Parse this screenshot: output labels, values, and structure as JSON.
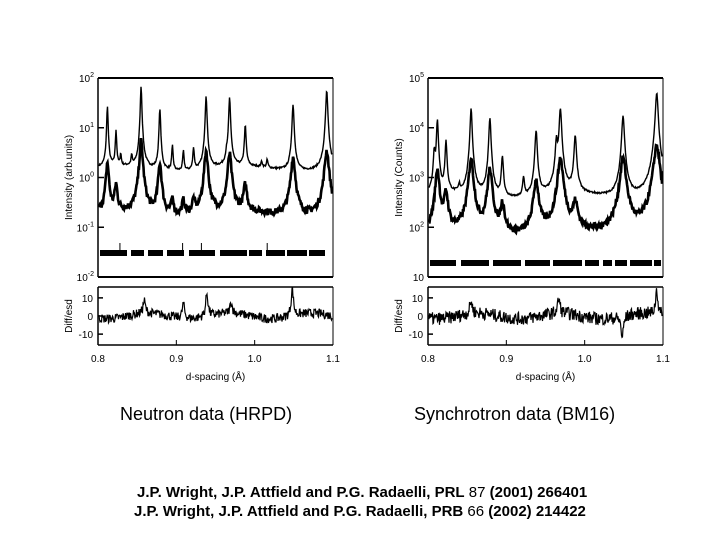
{
  "captions": {
    "left": "Neutron data (HRPD)",
    "right": "Synchrotron data (BM16)"
  },
  "references": [
    {
      "authors": "J.P. Wright, J.P. Attfield and P.G. Radaelli, ",
      "journal": "PRL",
      "volume": " 87 ",
      "rest": "(2001) 266401"
    },
    {
      "authors": "J.P. Wright, J.P. Attfield and P.G. Radaelli, ",
      "journal": "PRB",
      "volume": " 66 ",
      "rest": "(2002) 214422"
    }
  ],
  "chart_data": [
    {
      "type": "line",
      "title": "Neutron data (HRPD)",
      "xlabel": "d-spacing (Å)",
      "ylabel": "Intensity (arb.units)",
      "yscale": "log",
      "xlim": [
        0.8,
        1.1
      ],
      "ylim": [
        0.01,
        100
      ],
      "x_ticks": [
        "0.8",
        "0.9",
        "1.0",
        "1.1"
      ],
      "y_ticks": [
        "10^-2",
        "10^-1",
        "10^0",
        "10^1",
        "10^2"
      ],
      "baselines": {
        "upper": 1.5,
        "lower": 0.18
      },
      "series": [
        {
          "name": "upper pattern (observed/calc)",
          "peaks": [
            {
              "x": 0.812,
              "y": 28
            },
            {
              "x": 0.823,
              "y": 9
            },
            {
              "x": 0.829,
              "y": 2.8
            },
            {
              "x": 0.843,
              "y": 2.6
            },
            {
              "x": 0.855,
              "y": 70
            },
            {
              "x": 0.879,
              "y": 25
            },
            {
              "x": 0.895,
              "y": 4.5
            },
            {
              "x": 0.909,
              "y": 3.6
            },
            {
              "x": 0.922,
              "y": 4.2
            },
            {
              "x": 0.938,
              "y": 45
            },
            {
              "x": 0.964,
              "y": 2.3
            },
            {
              "x": 0.968,
              "y": 40
            },
            {
              "x": 0.988,
              "y": 11
            },
            {
              "x": 1.009,
              "y": 2.0
            },
            {
              "x": 1.016,
              "y": 2.2
            },
            {
              "x": 1.049,
              "y": 30
            },
            {
              "x": 1.092,
              "y": 55
            }
          ]
        },
        {
          "name": "lower pattern (observed/calc)",
          "peaks": [
            {
              "x": 0.812,
              "y": 2.0
            },
            {
              "x": 0.823,
              "y": 0.7
            },
            {
              "x": 0.855,
              "y": 5.5
            },
            {
              "x": 0.879,
              "y": 2.0
            },
            {
              "x": 0.895,
              "y": 0.35
            },
            {
              "x": 0.909,
              "y": 0.35
            },
            {
              "x": 0.922,
              "y": 0.35
            },
            {
              "x": 0.938,
              "y": 3.5
            },
            {
              "x": 0.968,
              "y": 3.0
            },
            {
              "x": 0.988,
              "y": 0.7
            },
            {
              "x": 1.049,
              "y": 2.6
            },
            {
              "x": 1.092,
              "y": 3.5
            }
          ]
        }
      ],
      "reflection_marker_ticks_x": [
        0.828,
        0.908,
        0.932,
        1.016
      ],
      "difference_panel": {
        "ylabel": "Diff/esd",
        "y_ticks": [
          "10",
          "0",
          "-10"
        ],
        "ylim": [
          -16,
          16
        ],
        "features": [
          {
            "x": 0.859,
            "y": 7
          },
          {
            "x": 0.909,
            "y": 8
          },
          {
            "x": 0.939,
            "y": 13
          },
          {
            "x": 0.97,
            "y": 6
          },
          {
            "x": 1.048,
            "y": 15
          }
        ]
      }
    },
    {
      "type": "line",
      "title": "Synchrotron data (BM16)",
      "xlabel": "d-spacing (Å)",
      "ylabel": "Intensity (Counts)",
      "yscale": "log",
      "xlim": [
        0.8,
        1.1
      ],
      "ylim": [
        10,
        100000
      ],
      "x_ticks": [
        "0.8",
        "0.9",
        "1.0",
        "1.1"
      ],
      "y_ticks": [
        "10",
        "10^2",
        "10^3",
        "10^4",
        "10^5"
      ],
      "baselines": {
        "upper": 400,
        "lower": 65
      },
      "series": [
        {
          "name": "upper pattern (observed/calc)",
          "peaks": [
            {
              "x": 0.808,
              "y": 3500
            },
            {
              "x": 0.812,
              "y": 15000
            },
            {
              "x": 0.823,
              "y": 5500
            },
            {
              "x": 0.84,
              "y": 600
            },
            {
              "x": 0.855,
              "y": 25000
            },
            {
              "x": 0.879,
              "y": 16000
            },
            {
              "x": 0.895,
              "y": 2700
            },
            {
              "x": 0.922,
              "y": 1000
            },
            {
              "x": 0.938,
              "y": 9000
            },
            {
              "x": 0.964,
              "y": 5500
            },
            {
              "x": 0.969,
              "y": 25000
            },
            {
              "x": 0.988,
              "y": 7000
            },
            {
              "x": 1.049,
              "y": 18000
            },
            {
              "x": 1.092,
              "y": 50000
            }
          ]
        },
        {
          "name": "lower pattern (observed/calc)",
          "peaks": [
            {
              "x": 0.812,
              "y": 1500
            },
            {
              "x": 0.823,
              "y": 500
            },
            {
              "x": 0.855,
              "y": 2500
            },
            {
              "x": 0.879,
              "y": 1500
            },
            {
              "x": 0.895,
              "y": 300
            },
            {
              "x": 0.938,
              "y": 900
            },
            {
              "x": 0.969,
              "y": 2500
            },
            {
              "x": 0.988,
              "y": 300
            },
            {
              "x": 1.049,
              "y": 2500
            },
            {
              "x": 1.092,
              "y": 4500
            }
          ]
        }
      ],
      "difference_panel": {
        "ylabel": "Diff/esd",
        "y_ticks": [
          "10",
          "0",
          "-10"
        ],
        "ylim": [
          -16,
          16
        ],
        "features": [
          {
            "x": 0.855,
            "y": 7
          },
          {
            "x": 0.967,
            "y": 8
          },
          {
            "x": 1.048,
            "y": -12
          },
          {
            "x": 1.092,
            "y": 14
          }
        ]
      }
    }
  ]
}
